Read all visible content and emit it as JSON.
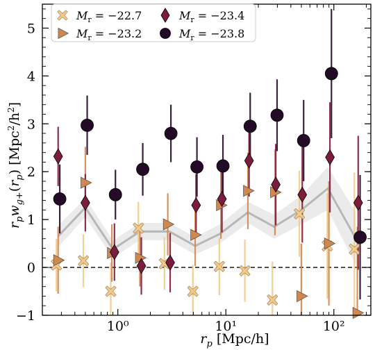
{
  "chart_data": {
    "type": "scatter",
    "xlabel_main": "r",
    "xlabel_sub": "p",
    "xlabel_unit": " [Mpc/h]",
    "ylabel_text": "r_p w_{g+}(r_p) [Mpc²/h²]",
    "xscale": "log",
    "xlim": [
      0.2,
      220
    ],
    "ylim": [
      -1,
      5.5
    ],
    "x_ticks": [
      {
        "value": 1,
        "label": "10⁰"
      },
      {
        "value": 10,
        "label": "10¹"
      },
      {
        "value": 100,
        "label": "10²"
      }
    ],
    "y_ticks": [
      {
        "value": -1,
        "label": "−1"
      },
      {
        "value": 0,
        "label": "0"
      },
      {
        "value": 1,
        "label": "1"
      },
      {
        "value": 2,
        "label": "2"
      },
      {
        "value": 3,
        "label": "3"
      },
      {
        "value": 4,
        "label": "4"
      },
      {
        "value": 5,
        "label": "5"
      }
    ],
    "reference_line_y": 0,
    "legend_position": "top-left",
    "model_band": {
      "x": [
        0.28,
        0.5,
        0.9,
        1.6,
        3.0,
        5.2,
        8.8,
        16,
        28,
        50,
        88,
        160
      ],
      "y": [
        0.65,
        1.25,
        0.38,
        0.75,
        0.75,
        0.45,
        0.7,
        1.15,
        0.85,
        1.2,
        1.65,
        0.6
      ],
      "err": [
        0.22,
        0.2,
        0.18,
        0.18,
        0.18,
        0.18,
        0.2,
        0.22,
        0.25,
        0.3,
        0.45,
        0.55
      ],
      "color": "#b7b7b7"
    },
    "series": [
      {
        "name": "M_r = −22.7",
        "abs_mag": "−22.7",
        "marker": "x",
        "color": "#f3c987",
        "x": [
          0.27,
          0.48,
          0.86,
          1.55,
          2.7,
          4.95,
          8.7,
          15.0,
          27.0,
          48.0,
          87.0,
          155.0
        ],
        "y": [
          0.05,
          0.14,
          -0.5,
          0.82,
          0.08,
          -0.5,
          0.02,
          -0.07,
          -0.68,
          1.12,
          0.45,
          0.38
        ],
        "err": [
          0.55,
          0.55,
          0.6,
          0.55,
          0.55,
          0.55,
          0.6,
          0.65,
          0.8,
          0.9,
          1.1,
          1.6
        ]
      },
      {
        "name": "M_r = −23.2",
        "abs_mag": "−23.2",
        "marker": "triangle-right",
        "color": "#d2874f",
        "x": [
          0.28,
          0.5,
          0.88,
          1.6,
          2.9,
          5.2,
          9.0,
          16.0,
          28.5,
          50.0,
          90.0,
          165.0
        ],
        "y": [
          0.15,
          1.77,
          0.3,
          0.2,
          0.9,
          0.68,
          1.3,
          1.6,
          1.57,
          -0.6,
          0.5,
          -0.95
        ],
        "err": [
          0.7,
          0.75,
          0.6,
          0.6,
          0.65,
          0.65,
          0.7,
          0.8,
          0.9,
          1.1,
          1.3,
          1.8
        ]
      },
      {
        "name": "M_r = −23.4",
        "abs_mag": "−23.4",
        "marker": "diamond",
        "color": "#7c1c3e",
        "x": [
          0.28,
          0.5,
          0.93,
          1.65,
          3.05,
          5.3,
          9.2,
          16.4,
          29.0,
          51.0,
          92.0,
          168.0
        ],
        "y": [
          2.32,
          1.35,
          0.32,
          0.03,
          0.1,
          1.3,
          1.43,
          2.23,
          1.73,
          1.52,
          2.3,
          1.35
        ],
        "err": [
          0.62,
          0.6,
          0.6,
          0.6,
          0.62,
          0.65,
          0.7,
          0.75,
          0.85,
          1.0,
          1.15,
          1.4
        ]
      },
      {
        "name": "M_r = −23.8",
        "abs_mag": "−23.8",
        "marker": "circle",
        "color": "#230a26",
        "x": [
          0.29,
          0.52,
          0.95,
          1.7,
          3.1,
          5.4,
          9.4,
          16.8,
          29.8,
          52.5,
          95.0,
          175.0
        ],
        "y": [
          1.43,
          2.97,
          1.52,
          2.05,
          2.8,
          2.1,
          2.12,
          2.95,
          3.18,
          2.65,
          4.05,
          0.63
        ],
        "err": [
          0.72,
          0.62,
          0.52,
          0.55,
          0.6,
          0.62,
          0.65,
          0.7,
          0.75,
          0.85,
          1.35,
          1.3
        ]
      }
    ]
  }
}
